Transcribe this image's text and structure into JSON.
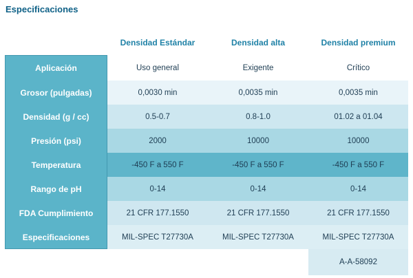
{
  "page": {
    "title": "Especificaciones"
  },
  "table": {
    "columns": [
      "Densidad Estándar",
      "Densidad alta",
      "Densidad premium"
    ],
    "rows": [
      {
        "label": "Aplicación",
        "values": [
          "Uso general",
          "Exigente",
          "Crítico"
        ]
      },
      {
        "label": "Grosor (pulgadas)",
        "values": [
          "0,0030 min",
          "0,0035 min",
          "0,0035 min"
        ]
      },
      {
        "label": "Densidad (g / cc)",
        "values": [
          "0.5-0.7",
          "0.8-1.0",
          "01.02 a 01.04"
        ]
      },
      {
        "label": "Presión (psi)",
        "values": [
          "2000",
          "10000",
          "10000"
        ]
      },
      {
        "label": "Temperatura",
        "values": [
          "-450 F a 550 F",
          "-450 F a 550 F",
          "-450 F a 550 F"
        ]
      },
      {
        "label": "Rango de pH",
        "values": [
          "0-14",
          "0-14",
          "0-14"
        ]
      },
      {
        "label": "FDA Cumplimiento",
        "values": [
          "21 CFR 177.1550",
          "21 CFR 177.1550",
          "21 CFR 177.1550"
        ]
      },
      {
        "label": "Especificaciones",
        "values": [
          "MIL-SPEC T27730A",
          "MIL-SPEC T27730A",
          "MIL-SPEC T27730A"
        ]
      },
      {
        "label": "",
        "values": [
          "",
          "",
          "A-A-58092"
        ]
      }
    ],
    "colors": {
      "label_column_bg": "#5bb4c9",
      "title_text": "#0f6187",
      "column_header_text": "#1f81a6",
      "cell_text": "#1d3c52",
      "row_stripes": [
        "#ffffff",
        "#e9f4f9",
        "#cde7f0",
        "#a9d8e4",
        "#5fb5ca",
        "#a9d8e4",
        "#cfe7f0",
        "#dceef4",
        "#d7ebf2"
      ]
    }
  }
}
